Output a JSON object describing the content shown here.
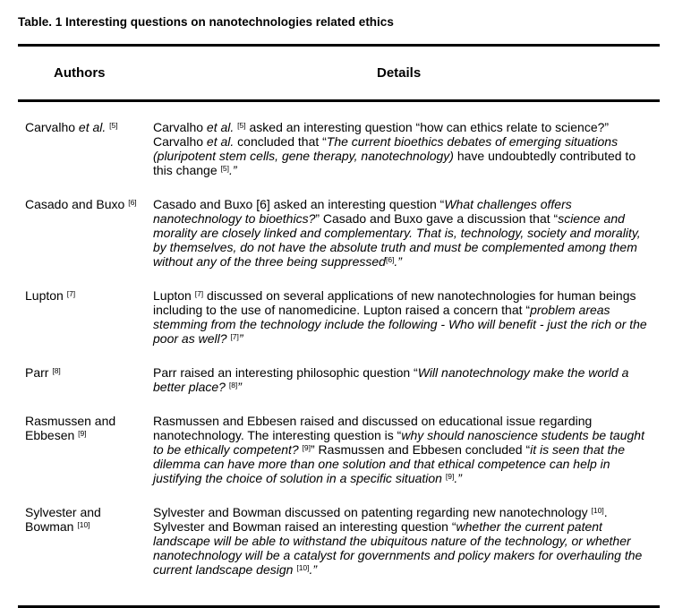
{
  "title": "Table. 1 Interesting questions on nanotechnologies related ethics",
  "headers": {
    "authors": "Authors",
    "details": "Details"
  },
  "rows": [
    {
      "author": [
        {
          "t": "Carvalho ",
          "s": "n"
        },
        {
          "t": "et al.",
          "s": "i"
        },
        {
          "t": " ",
          "s": "n"
        },
        {
          "t": "[5]",
          "s": "sup"
        }
      ],
      "details": [
        {
          "t": "Carvalho ",
          "s": "n"
        },
        {
          "t": "et al.",
          "s": "i"
        },
        {
          "t": " ",
          "s": "n"
        },
        {
          "t": "[5]",
          "s": "sup"
        },
        {
          "t": " asked an interesting question “how can ethics relate to science?” Carvalho ",
          "s": "n"
        },
        {
          "t": "et al.",
          "s": "i"
        },
        {
          "t": " concluded that “",
          "s": "n"
        },
        {
          "t": "The current bioethics debates of emerging situations (pluripotent stem cells, gene therapy, nanotechnology)",
          "s": "i"
        },
        {
          "t": " have undoubtedly contributed to this change ",
          "s": "n"
        },
        {
          "t": "[5]",
          "s": "sup"
        },
        {
          "t": ".”",
          "s": "i"
        }
      ]
    },
    {
      "author": [
        {
          "t": "Casado and Buxo ",
          "s": "n"
        },
        {
          "t": "[6]",
          "s": "sup"
        }
      ],
      "details": [
        {
          "t": "Casado and Buxo [6] asked an interesting question “",
          "s": "n"
        },
        {
          "t": "What challenges offers nanotechnology to bioethics?",
          "s": "i"
        },
        {
          "t": "” Casado and Buxo gave a discussion that “",
          "s": "n"
        },
        {
          "t": "science and morality are closely linked and complementary. That is, technology, society and morality, by themselves, do not have the absolute truth and must be complemented among them without any of the three being suppressed",
          "s": "i"
        },
        {
          "t": "[6]",
          "s": "sup"
        },
        {
          "t": ".”",
          "s": "i"
        }
      ]
    },
    {
      "author": [
        {
          "t": "Lupton ",
          "s": "n"
        },
        {
          "t": "[7]",
          "s": "sup"
        }
      ],
      "details": [
        {
          "t": "Lupton ",
          "s": "n"
        },
        {
          "t": "[7]",
          "s": "sup"
        },
        {
          "t": " discussed on several applications of new nanotechnologies  for human beings including to the use of nanomedicine. Lupton raised a concern that “",
          "s": "n"
        },
        {
          "t": "problem areas stemming from the technology include the following - Who will benefit - just the rich or the poor as well? ",
          "s": "i"
        },
        {
          "t": "[7]",
          "s": "sup"
        },
        {
          "t": "”",
          "s": "i"
        }
      ]
    },
    {
      "author": [
        {
          "t": "Parr ",
          "s": "n"
        },
        {
          "t": "[8]",
          "s": "sup"
        }
      ],
      "details": [
        {
          "t": "Parr raised an interesting philosophic question “",
          "s": "n"
        },
        {
          "t": "Will nanotechnology make the world a better place? ",
          "s": "i"
        },
        {
          "t": "[8]",
          "s": "sup"
        },
        {
          "t": "”",
          "s": "i"
        }
      ]
    },
    {
      "author": [
        {
          "t": "Rasmussen and Ebbesen ",
          "s": "n"
        },
        {
          "t": "[9]",
          "s": "sup"
        }
      ],
      "details": [
        {
          "t": "Rasmussen and Ebbesen raised and discussed on educational issue regarding nanotechnology. The interesting question is “",
          "s": "n"
        },
        {
          "t": "why should nanoscience students be taught to be ethically competent? ",
          "s": "i"
        },
        {
          "t": "[9]",
          "s": "sup"
        },
        {
          "t": "” Rasmussen and Ebbesen concluded “",
          "s": "n"
        },
        {
          "t": "it is seen that the dilemma can have more than one solution and that ethical competence can help in justifying the choice of solution in a specific situation ",
          "s": "i"
        },
        {
          "t": "[9]",
          "s": "sup"
        },
        {
          "t": ".”",
          "s": "i"
        }
      ]
    },
    {
      "author": [
        {
          "t": "Sylvester and Bowman ",
          "s": "n"
        },
        {
          "t": "[10]",
          "s": "sup"
        }
      ],
      "details": [
        {
          "t": "Sylvester and Bowman discussed on patenting regarding new nanotechnology ",
          "s": "n"
        },
        {
          "t": "[10]",
          "s": "sup"
        },
        {
          "t": ". Sylvester and Bowman raised an interesting question “",
          "s": "n"
        },
        {
          "t": "whether the current patent landscape will be able to withstand the ubiquitous nature of the technology, or whether nanotechnology will be a catalyst for governments and policy makers for overhauling the current landscape design ",
          "s": "i"
        },
        {
          "t": "[10]",
          "s": "sup"
        },
        {
          "t": ".”",
          "s": "i"
        }
      ]
    }
  ]
}
